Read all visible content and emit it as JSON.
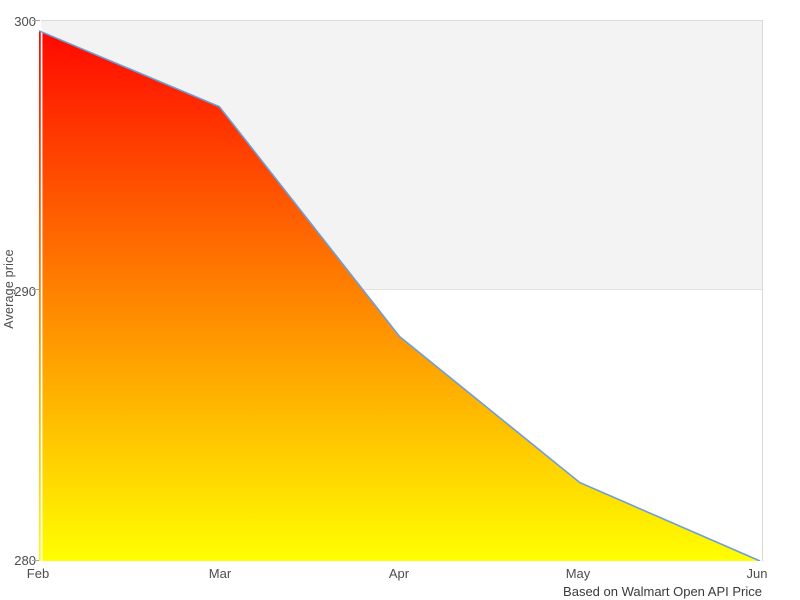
{
  "chart_data": {
    "type": "area",
    "title": "",
    "categories": [
      "Feb",
      "Mar",
      "Apr",
      "May",
      "Jun"
    ],
    "values": [
      299.6,
      296.8,
      288.3,
      282.9,
      280.0
    ],
    "xlabel": "",
    "ylabel": "Average price",
    "ylim": [
      280,
      300
    ],
    "yticks": [
      300,
      290,
      280
    ],
    "ytick_labels": [
      "300",
      "290",
      "280"
    ],
    "grid": "single horizontal gridline at 290; shaded background band from 290 to 300",
    "legend": "none",
    "caption": "Based on Walmart Open API Price"
  },
  "colors": {
    "gradient_top": "#ff0800",
    "gradient_bottom": "#ffff00",
    "line": "#6e9ed8",
    "band": "#f2f3f2",
    "plot_border": "#d9d9d9",
    "gridline": "#e2e2e2",
    "axis_overlay_line": "#ffffff",
    "tick_text": "#4d4d4d",
    "caption_text": "#3a3a3a"
  }
}
